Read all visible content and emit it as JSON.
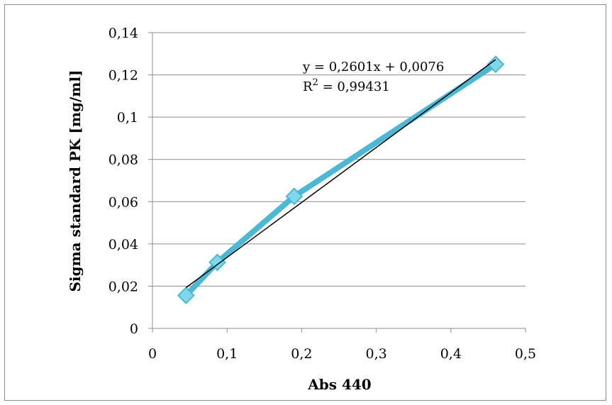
{
  "chart_data": {
    "type": "scatter",
    "title": "",
    "xlabel": "Abs 440",
    "ylabel": "Sigma standard PK [mg/ml]",
    "xlim": [
      0,
      0.5
    ],
    "ylim": [
      0,
      0.14
    ],
    "x_ticks": [
      "0",
      "0,1",
      "0,2",
      "0,3",
      "0,4",
      "0,5"
    ],
    "y_ticks": [
      "0",
      "0,02",
      "0,04",
      "0,06",
      "0,08",
      "0,1",
      "0,12",
      "0,14"
    ],
    "grid": true,
    "series": [
      {
        "x": [
          0.045,
          0.087,
          0.19,
          0.46
        ],
        "y": [
          0.0156,
          0.03125,
          0.0625,
          0.125
        ],
        "color": "#4db8d4",
        "marker_color": "#7fd8ea",
        "marker": "diamond",
        "line": true
      }
    ],
    "trendline": {
      "slope": 0.2601,
      "intercept": 0.0076,
      "x_range": [
        0.045,
        0.46
      ],
      "color": "#000000",
      "equation": "y = 0,2601x + 0,0076",
      "r2_label": "R",
      "r2_sup": "2",
      "r2_value": " = 0,99431"
    }
  }
}
